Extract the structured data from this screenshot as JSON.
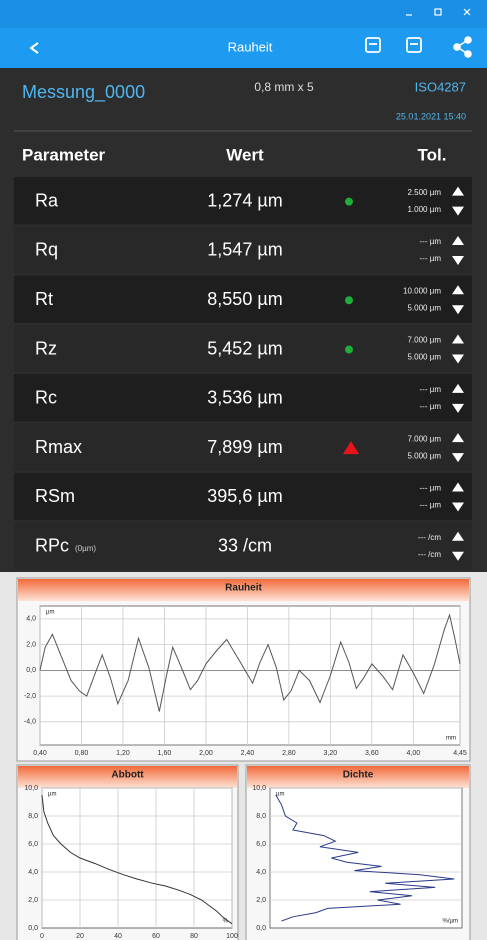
{
  "nav": {
    "title": "Rauheit"
  },
  "header": {
    "name": "Messung_0000",
    "cutoff": "0,8 mm x 5",
    "standard": "ISO4287",
    "date": "25.01.2021  15:40"
  },
  "table": {
    "columns": [
      "Parameter",
      "Wert",
      "Tol."
    ],
    "rows": [
      {
        "name": "Ra",
        "value": "1,274 µm",
        "status": "ok",
        "upper": "2.500 µm",
        "lower": "1.000 µm"
      },
      {
        "name": "Rq",
        "value": "1,547 µm",
        "status": "none",
        "upper": "--- µm",
        "lower": "--- µm"
      },
      {
        "name": "Rt",
        "value": "8,550 µm",
        "status": "ok",
        "upper": "10.000 µm",
        "lower": "5.000 µm"
      },
      {
        "name": "Rz",
        "value": "5,452 µm",
        "status": "ok",
        "upper": "7.000 µm",
        "lower": "5.000 µm"
      },
      {
        "name": "Rc",
        "value": "3,536 µm",
        "status": "none",
        "upper": "--- µm",
        "lower": "--- µm"
      },
      {
        "name": "Rmax",
        "value": "7,899 µm",
        "status": "fail",
        "upper": "7.000 µm",
        "lower": "5.000 µm"
      },
      {
        "name": "RSm",
        "value": "395,6 µm",
        "status": "none",
        "upper": "--- µm",
        "lower": "--- µm"
      },
      {
        "name": "RPc",
        "sub": "(0µm)",
        "value": "33 /cm",
        "status": "none",
        "upper": "--- /cm",
        "lower": "--- /cm"
      }
    ]
  },
  "charts": [
    {
      "type": "line",
      "title": "Rauheit",
      "y_unit": "µm",
      "x_unit": "mm",
      "color": "#555555",
      "xlim": [
        0.4,
        4.45
      ],
      "ylim": [
        -5.8,
        5
      ],
      "xticks": [
        {
          "value": 0.4,
          "label": "0,40"
        },
        {
          "value": 0.8,
          "label": "0,80"
        },
        {
          "value": 1.2,
          "label": "1,20"
        },
        {
          "value": 1.6,
          "label": "1,60"
        },
        {
          "value": 2.0,
          "label": "2,00"
        },
        {
          "value": 2.4,
          "label": "2,40"
        },
        {
          "value": 2.8,
          "label": "2,80"
        },
        {
          "value": 3.2,
          "label": "3,20"
        },
        {
          "value": 3.6,
          "label": "3,60"
        },
        {
          "value": 4.0,
          "label": "4,00"
        },
        {
          "value": 4.45,
          "label": "4,45"
        }
      ],
      "yticks": [
        {
          "value": 4,
          "label": "4,0"
        },
        {
          "value": 2,
          "label": "2,0"
        },
        {
          "value": 0,
          "label": "0,0"
        },
        {
          "value": -2,
          "label": "-2,0"
        },
        {
          "value": -4,
          "label": "-4,0"
        }
      ],
      "x": [
        0.4,
        0.45,
        0.52,
        0.6,
        0.7,
        0.78,
        0.85,
        0.92,
        1.0,
        1.08,
        1.15,
        1.25,
        1.35,
        1.45,
        1.55,
        1.62,
        1.68,
        1.76,
        1.85,
        1.92,
        2.0,
        2.1,
        2.2,
        2.32,
        2.45,
        2.52,
        2.6,
        2.68,
        2.75,
        2.82,
        2.9,
        3.0,
        3.1,
        3.2,
        3.3,
        3.38,
        3.45,
        3.52,
        3.6,
        3.7,
        3.8,
        3.9,
        4.0,
        4.1,
        4.2,
        4.3,
        4.35,
        4.4,
        4.45
      ],
      "values": [
        0.0,
        1.8,
        2.8,
        1.2,
        -0.8,
        -1.6,
        -2.0,
        -0.5,
        1.2,
        -0.6,
        -2.6,
        -0.8,
        2.5,
        0.2,
        -3.2,
        -0.4,
        1.8,
        0.3,
        -1.5,
        -0.8,
        0.5,
        1.5,
        2.4,
        0.8,
        -1.0,
        0.6,
        2.0,
        0.2,
        -2.3,
        -1.6,
        0.0,
        -0.8,
        -2.5,
        -0.4,
        2.2,
        0.6,
        -1.4,
        -0.6,
        0.5,
        -0.4,
        -1.5,
        1.2,
        -0.2,
        -1.8,
        0.4,
        3.2,
        4.3,
        2.5,
        0.5
      ]
    },
    {
      "type": "line",
      "title": "Abbott",
      "y_unit": "µm",
      "x_unit": "%",
      "color": "#333333",
      "xlim": [
        0,
        100
      ],
      "ylim": [
        0,
        10
      ],
      "xticks": [
        0,
        20,
        40,
        60,
        80,
        100
      ],
      "yticks": [
        {
          "value": 10,
          "label": "10,0"
        },
        {
          "value": 8,
          "label": "8,0"
        },
        {
          "value": 6,
          "label": "6,0"
        },
        {
          "value": 4,
          "label": "4,0"
        },
        {
          "value": 2,
          "label": "2,0"
        },
        {
          "value": 0,
          "label": "0,0"
        }
      ],
      "x": [
        0,
        1,
        3,
        6,
        10,
        15,
        20,
        28,
        35,
        43,
        50,
        58,
        65,
        72,
        78,
        84,
        88,
        92,
        95,
        98,
        100
      ],
      "values": [
        9.5,
        8.3,
        7.5,
        6.6,
        6.0,
        5.4,
        5.0,
        4.6,
        4.2,
        3.8,
        3.5,
        3.2,
        3.0,
        2.7,
        2.4,
        2.0,
        1.6,
        1.2,
        0.8,
        0.5,
        0.3
      ]
    },
    {
      "type": "profile",
      "title": "Dichte",
      "y_unit": "µm",
      "x_unit": "%/µm",
      "color": "#2a3a8a",
      "xlim": [
        0,
        10
      ],
      "ylim": [
        0,
        10
      ],
      "yticks": [
        {
          "value": 10,
          "label": "10,0"
        },
        {
          "value": 8,
          "label": "8,0"
        },
        {
          "value": 6,
          "label": "6,0"
        },
        {
          "value": 4,
          "label": "4,0"
        },
        {
          "value": 2,
          "label": "2,0"
        },
        {
          "value": 0,
          "label": "0,0"
        }
      ],
      "x": [
        9.5,
        8.8,
        8.0,
        7.5,
        7.0,
        6.6,
        6.2,
        5.8,
        5.4,
        5.0,
        4.7,
        4.4,
        4.1,
        3.8,
        3.5,
        3.2,
        2.9,
        2.6,
        2.3,
        2.0,
        1.7,
        1.4,
        1.1,
        0.8,
        0.5
      ],
      "values": [
        0.3,
        0.6,
        0.8,
        1.4,
        1.2,
        2.8,
        3.4,
        2.6,
        4.6,
        3.2,
        4.0,
        5.8,
        4.4,
        7.8,
        9.6,
        6.0,
        8.6,
        5.2,
        7.4,
        5.6,
        6.8,
        3.0,
        2.4,
        1.2,
        0.6
      ]
    }
  ]
}
